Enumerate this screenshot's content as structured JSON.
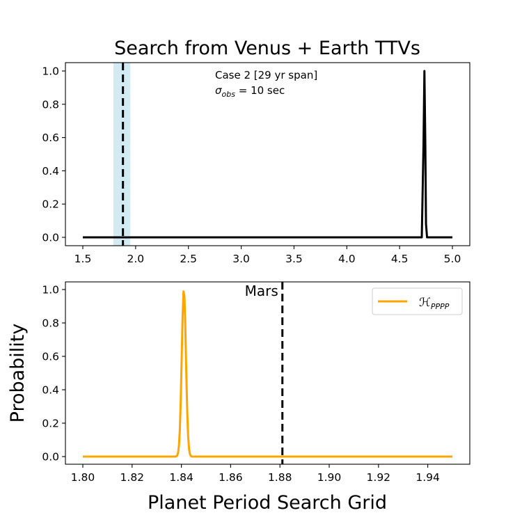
{
  "chart_data": [
    {
      "type": "line",
      "title": "Search from Venus + Earth TTVs",
      "xlabel": "",
      "ylabel": "",
      "xlim": [
        1.5,
        5.0
      ],
      "ylim": [
        0.0,
        1.0
      ],
      "xticks": [
        "1.5",
        "2.0",
        "2.5",
        "3.0",
        "3.5",
        "4.0",
        "4.5",
        "5.0"
      ],
      "yticks": [
        "0.0",
        "0.2",
        "0.4",
        "0.6",
        "0.8",
        "1.0"
      ],
      "annotation_line1": "Case 2 [29 yr span]",
      "annotation_sigma_symbol": "σ",
      "annotation_sigma_subscript": "obs",
      "annotation_sigma_value": " = 10 sec",
      "shaded_band": {
        "x_start": 1.79,
        "x_end": 1.95,
        "color": "#add8e6"
      },
      "vertical_reference": {
        "x": 1.88,
        "style": "dashed",
        "color": "#000000"
      },
      "series": [
        {
          "color": "#000000",
          "peak_center": 4.735,
          "peak_halfwidth": 0.025,
          "peak_value": 1.0,
          "x_start": 1.5,
          "x_end": 5.0
        }
      ]
    },
    {
      "type": "line",
      "title": "",
      "xlabel": "Planet Period Search Grid",
      "ylabel": "Probability",
      "xlim": [
        1.8,
        1.95
      ],
      "ylim": [
        0.0,
        1.0
      ],
      "xticks": [
        "1.80",
        "1.82",
        "1.84",
        "1.86",
        "1.88",
        "1.90",
        "1.92",
        "1.94"
      ],
      "yticks": [
        "0.0",
        "0.2",
        "0.4",
        "0.6",
        "0.8",
        "1.0"
      ],
      "vertical_reference": {
        "x": 1.881,
        "label": "Mars",
        "style": "dashed",
        "color": "#000000"
      },
      "legend": {
        "placement": "top-right",
        "symbol": "ℋ",
        "subscript": "PPPP"
      },
      "series": [
        {
          "name": "ℋPPPP",
          "color": "#ffa500",
          "peak_center": 1.841,
          "peak_sigma": 0.00085,
          "peak_value": 1.0,
          "x_start": 1.8,
          "x_end": 1.95
        }
      ]
    }
  ]
}
